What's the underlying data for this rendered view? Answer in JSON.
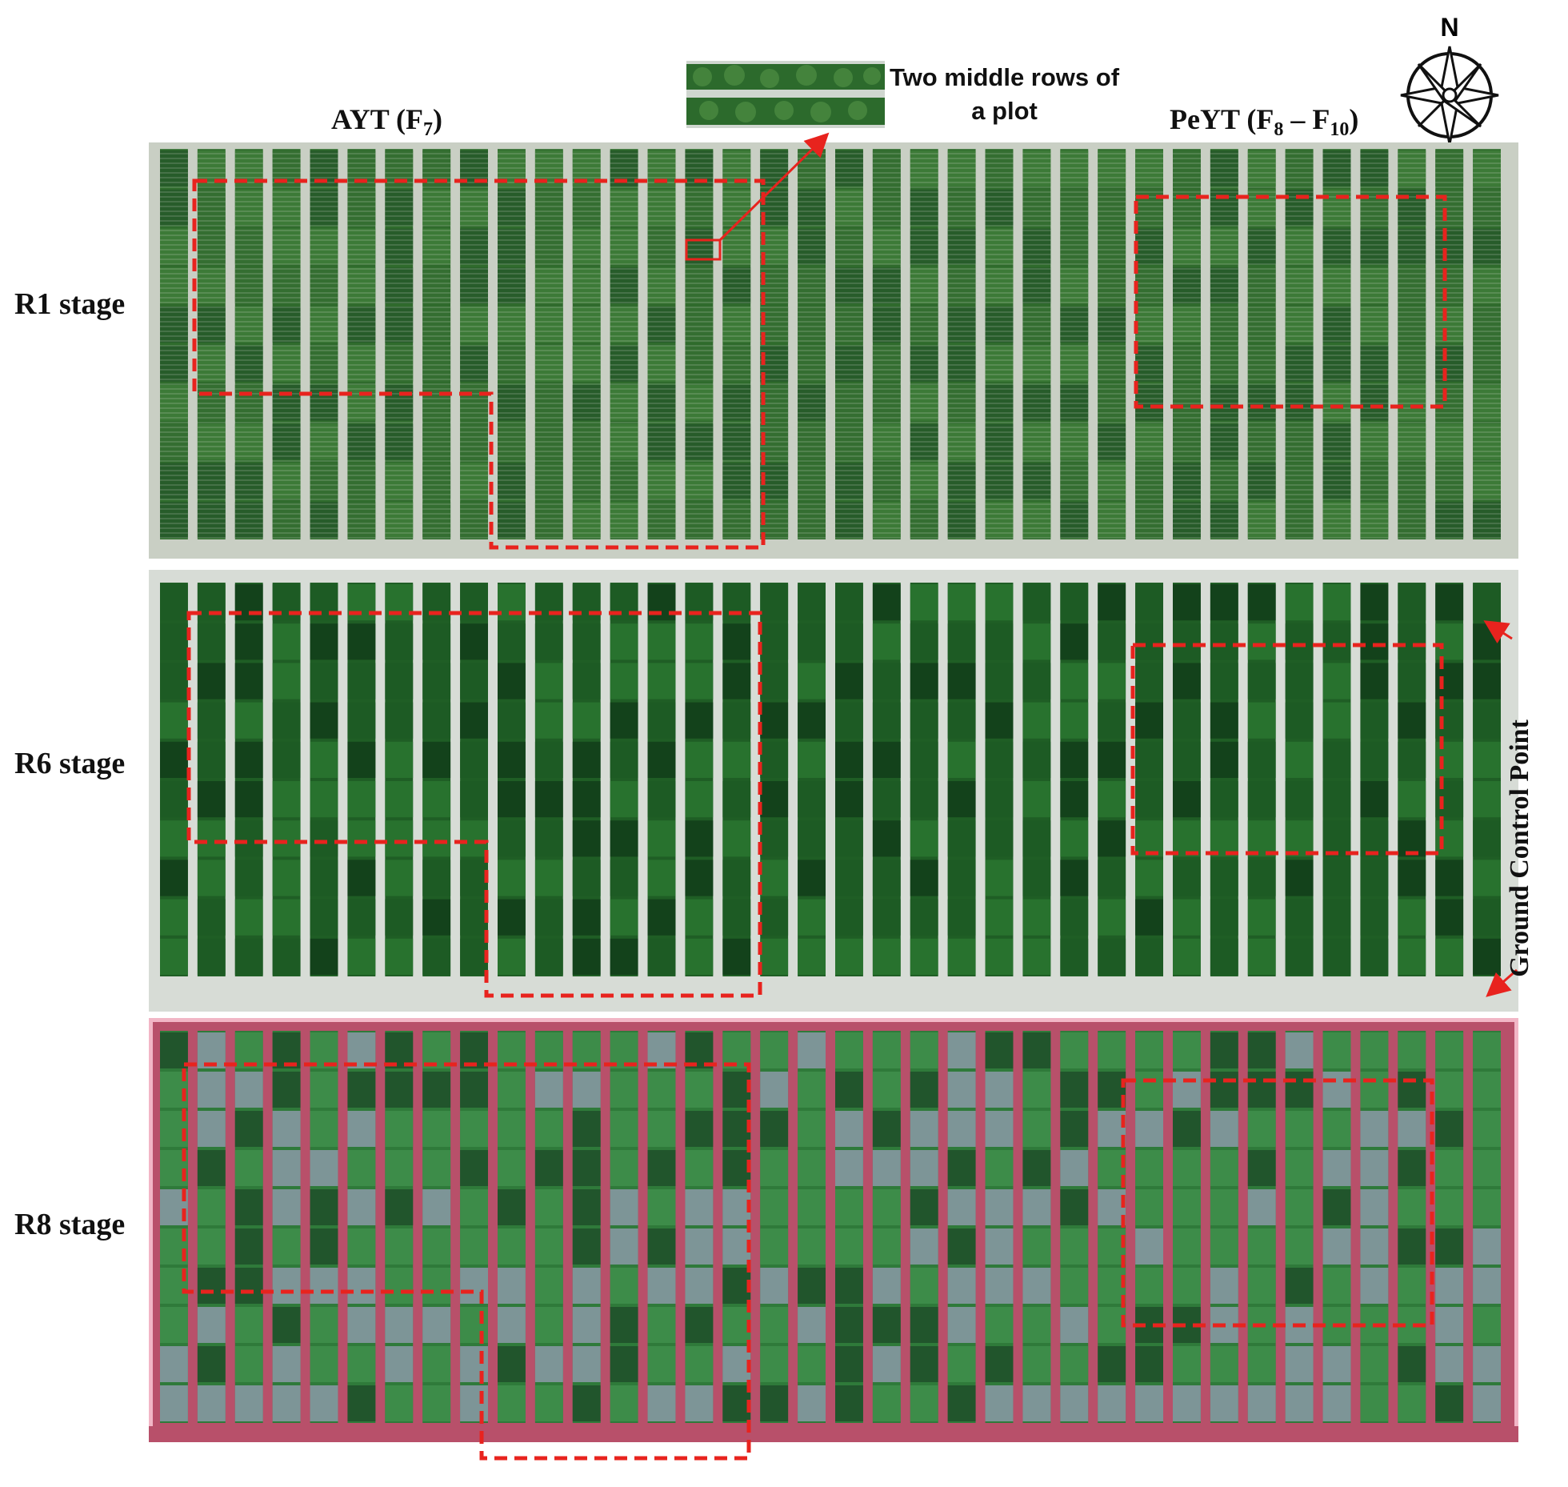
{
  "figure": {
    "trials": {
      "ayt": {
        "main": "AYT (F",
        "sub": "7",
        "close": ")"
      },
      "peyt": {
        "main": "PeYT (F",
        "sub1": "8",
        "dash": " – F",
        "sub2": "10",
        "close": ")"
      }
    },
    "callout": {
      "line1": "Two middle rows of",
      "line2": "a plot"
    },
    "compass": {
      "label": "N",
      "icon": "compass-rose-icon"
    },
    "ground_control_point": "Ground Control Point",
    "stages": [
      {
        "label": "R1 stage",
        "tone": "green"
      },
      {
        "label": "R6 stage",
        "tone": "dark-green"
      },
      {
        "label": "R8 stage",
        "tone": "pink-purple"
      }
    ],
    "colors": {
      "highlight": "#e8231e",
      "r1_plot": "#2f6b2c",
      "r1_soil": "#c9cfc4",
      "r6_plot": "#1f5e25",
      "r6_soil": "#d7dcd6",
      "r8_plot": "#2f7a3a",
      "r8_soil": "#b8506a",
      "r8_border": "#f2b6c6"
    }
  }
}
